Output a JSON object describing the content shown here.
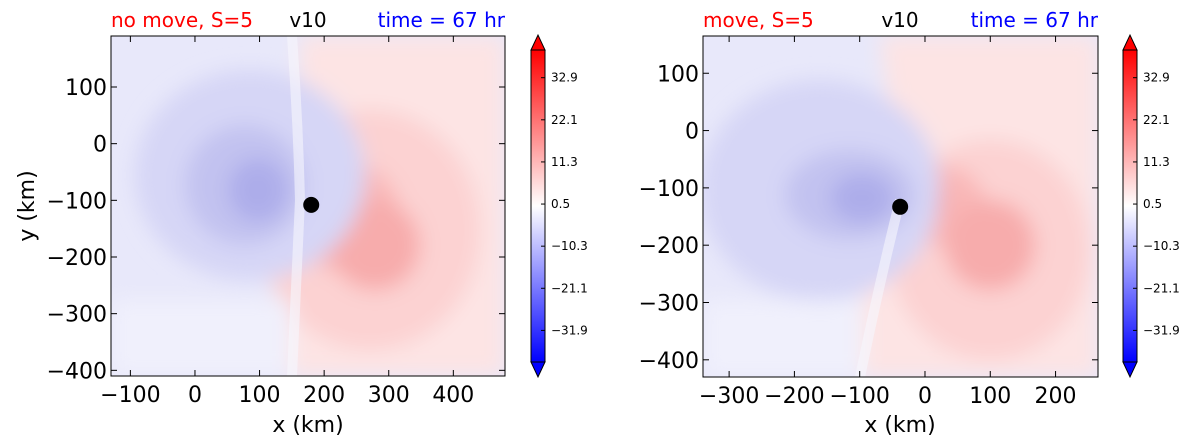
{
  "colors": {
    "title_left": "#ff0000",
    "title_center": "#000000",
    "title_right": "#0000ff",
    "negative": "#0000ff",
    "positive": "#ff0000",
    "neutral": "#ffffff",
    "storm_center": "#000000"
  },
  "chart_data": [
    {
      "type": "heatmap",
      "title_left": "no move, S=5",
      "title_center": "v10",
      "title_right": "time = 67 hr",
      "xlabel": "x (km)",
      "ylabel": "y (km)",
      "xlim": [
        -130,
        480
      ],
      "ylim": [
        -410,
        190
      ],
      "xticks": [
        -100,
        0,
        100,
        200,
        300,
        400
      ],
      "yticks": [
        100,
        0,
        -100,
        -200,
        -300,
        -400
      ],
      "xtick_labels": [
        "−100",
        "0",
        "100",
        "200",
        "300",
        "400"
      ],
      "ytick_labels": [
        "100",
        "0",
        "−100",
        "−200",
        "−300",
        "−400"
      ],
      "storm_center": {
        "x": 180,
        "y": -108
      },
      "colorbar": {
        "range": [
          -40,
          40
        ],
        "ticks": [
          32.9,
          22.1,
          11.3,
          0.5,
          -10.3,
          -21.1,
          -31.9
        ],
        "tick_labels": [
          "32.9",
          "22.1",
          "11.3",
          "0.5",
          "−10.3",
          "−21.1",
          "−31.9"
        ],
        "extend": "both"
      }
    },
    {
      "type": "heatmap",
      "title_left": "move, S=5",
      "title_center": "v10",
      "title_right": "time = 67 hr",
      "xlabel": "x (km)",
      "ylabel": "",
      "xlim": [
        -340,
        265
      ],
      "ylim": [
        -430,
        165
      ],
      "xticks": [
        -300,
        -200,
        -100,
        0,
        100,
        200
      ],
      "yticks": [
        100,
        0,
        -100,
        -200,
        -300,
        -400
      ],
      "xtick_labels": [
        "−300",
        "−200",
        "−100",
        "0",
        "100",
        "200"
      ],
      "ytick_labels": [
        "100",
        "0",
        "−100",
        "−200",
        "−300",
        "−400"
      ],
      "storm_center": {
        "x": -38,
        "y": -133
      },
      "colorbar": {
        "range": [
          -40,
          40
        ],
        "ticks": [
          32.9,
          22.1,
          11.3,
          0.5,
          -10.3,
          -21.1,
          -31.9
        ],
        "tick_labels": [
          "32.9",
          "22.1",
          "11.3",
          "0.5",
          "−10.3",
          "−21.1",
          "−31.9"
        ],
        "extend": "both"
      }
    }
  ]
}
